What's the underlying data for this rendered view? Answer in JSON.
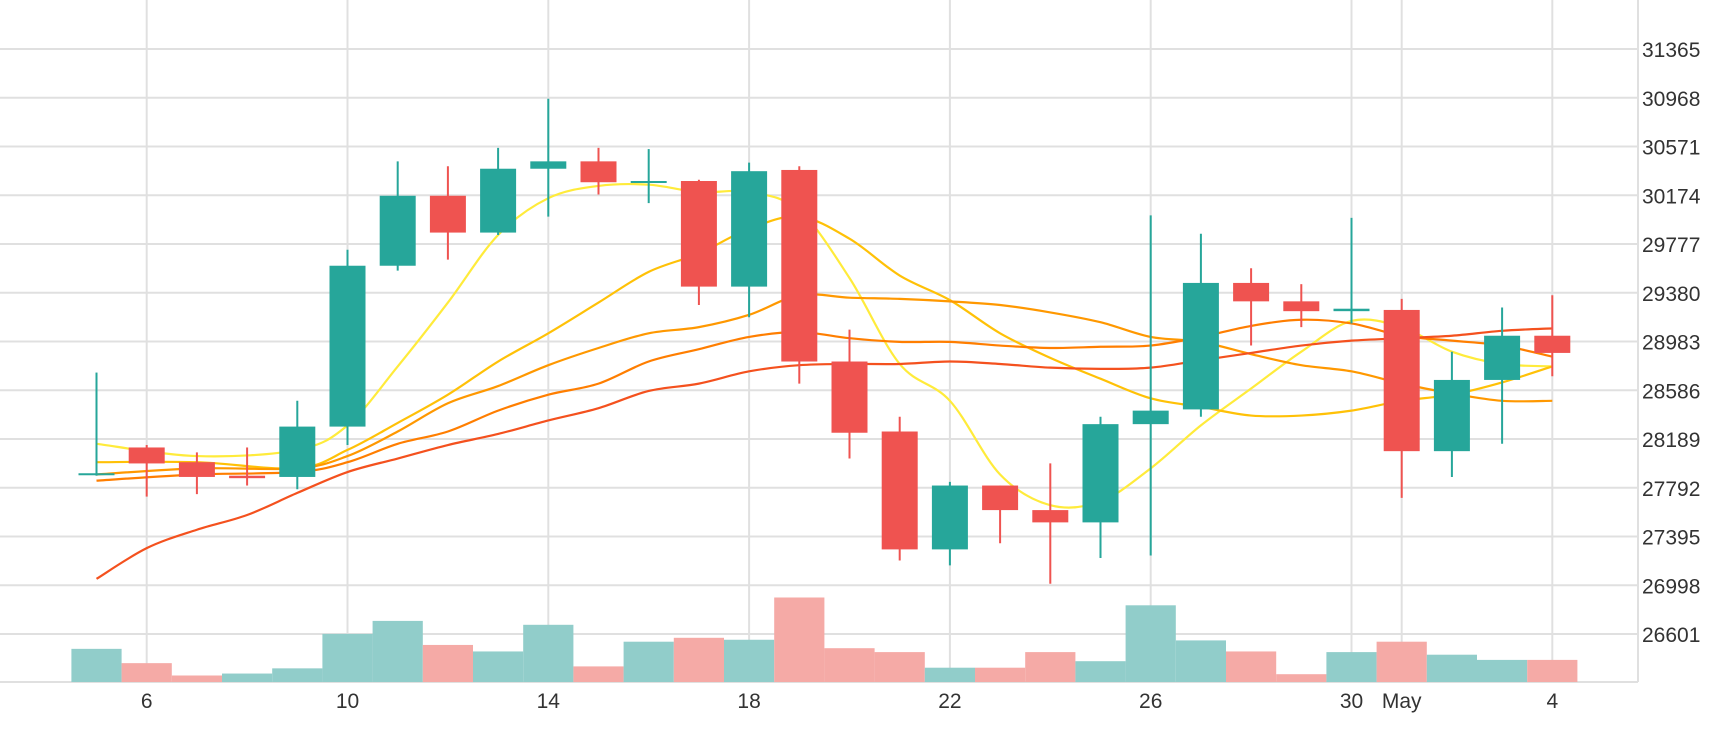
{
  "chart_data": {
    "type": "candlestick",
    "title": "",
    "xlabel": "",
    "ylabel": "",
    "y_ticks": [
      "31365",
      "30968",
      "30571",
      "30174",
      "29777",
      "29380",
      "28983",
      "28586",
      "28189",
      "27792",
      "27395",
      "26998",
      "26601"
    ],
    "ylim": [
      26200,
      31800
    ],
    "y_axis_position": "right",
    "grid": true,
    "x_ticks": [
      {
        "label": "6",
        "day": 6
      },
      {
        "label": "10",
        "day": 10
      },
      {
        "label": "14",
        "day": 14
      },
      {
        "label": "18",
        "day": 18
      },
      {
        "label": "22",
        "day": 22
      },
      {
        "label": "26",
        "day": 26
      },
      {
        "label": "30",
        "day": 30
      },
      {
        "label": "May",
        "day": 31
      },
      {
        "label": "4",
        "day": 34
      }
    ],
    "colors": {
      "up": "#26a69a",
      "down": "#ef5350",
      "up_volume": "#91cdca",
      "down_volume": "#f5aaa6",
      "grid": "#e0e0e0"
    },
    "candles": [
      {
        "day": 5,
        "o": 27900,
        "h": 28730,
        "l": 27890,
        "c": 27910
      },
      {
        "day": 6,
        "o": 28120,
        "h": 28140,
        "l": 27720,
        "c": 27990
      },
      {
        "day": 7,
        "o": 28000,
        "h": 28080,
        "l": 27740,
        "c": 27880
      },
      {
        "day": 8,
        "o": 27890,
        "h": 28120,
        "l": 27810,
        "c": 27870
      },
      {
        "day": 9,
        "o": 27880,
        "h": 28500,
        "l": 27780,
        "c": 28290
      },
      {
        "day": 10,
        "o": 28290,
        "h": 29730,
        "l": 28140,
        "c": 29600
      },
      {
        "day": 11,
        "o": 29600,
        "h": 30450,
        "l": 29560,
        "c": 30170
      },
      {
        "day": 12,
        "o": 30170,
        "h": 30410,
        "l": 29650,
        "c": 29870
      },
      {
        "day": 13,
        "o": 29870,
        "h": 30560,
        "l": 29850,
        "c": 30390
      },
      {
        "day": 14,
        "o": 30390,
        "h": 30960,
        "l": 30000,
        "c": 30450
      },
      {
        "day": 15,
        "o": 30450,
        "h": 30560,
        "l": 30180,
        "c": 30280
      },
      {
        "day": 16,
        "o": 30280,
        "h": 30550,
        "l": 30110,
        "c": 30290
      },
      {
        "day": 17,
        "o": 30290,
        "h": 30300,
        "l": 29280,
        "c": 29430
      },
      {
        "day": 18,
        "o": 29430,
        "h": 30440,
        "l": 29180,
        "c": 30370
      },
      {
        "day": 19,
        "o": 30380,
        "h": 30410,
        "l": 28640,
        "c": 28820
      },
      {
        "day": 20,
        "o": 28820,
        "h": 29080,
        "l": 28030,
        "c": 28240
      },
      {
        "day": 21,
        "o": 28250,
        "h": 28370,
        "l": 27200,
        "c": 27290
      },
      {
        "day": 22,
        "o": 27290,
        "h": 27840,
        "l": 27160,
        "c": 27810
      },
      {
        "day": 23,
        "o": 27810,
        "h": 27810,
        "l": 27340,
        "c": 27610
      },
      {
        "day": 24,
        "o": 27610,
        "h": 27990,
        "l": 27010,
        "c": 27510
      },
      {
        "day": 25,
        "o": 27510,
        "h": 28370,
        "l": 27220,
        "c": 28310
      },
      {
        "day": 26,
        "o": 28310,
        "h": 30010,
        "l": 27240,
        "c": 28420
      },
      {
        "day": 27,
        "o": 28430,
        "h": 29860,
        "l": 28370,
        "c": 29460
      },
      {
        "day": 28,
        "o": 29460,
        "h": 29580,
        "l": 28950,
        "c": 29310
      },
      {
        "day": 29,
        "o": 29310,
        "h": 29450,
        "l": 29100,
        "c": 29230
      },
      {
        "day": 30,
        "o": 29230,
        "h": 29990,
        "l": 29130,
        "c": 29250
      },
      {
        "day": 31,
        "o": 29240,
        "h": 29330,
        "l": 27710,
        "c": 28090
      },
      {
        "day": 32,
        "o": 28090,
        "h": 28900,
        "l": 27880,
        "c": 28670
      },
      {
        "day": 33,
        "o": 28670,
        "h": 29260,
        "l": 28150,
        "c": 29030
      },
      {
        "day": 34,
        "o": 29030,
        "h": 29360,
        "l": 28700,
        "c": 28890
      }
    ],
    "volume": [
      {
        "day": 5,
        "v": 0.51,
        "dir": "up"
      },
      {
        "day": 6,
        "v": 0.29,
        "dir": "down"
      },
      {
        "day": 7,
        "v": 0.1,
        "dir": "down"
      },
      {
        "day": 8,
        "v": 0.13,
        "dir": "up"
      },
      {
        "day": 9,
        "v": 0.21,
        "dir": "up"
      },
      {
        "day": 10,
        "v": 0.74,
        "dir": "up"
      },
      {
        "day": 11,
        "v": 0.94,
        "dir": "up"
      },
      {
        "day": 12,
        "v": 0.57,
        "dir": "down"
      },
      {
        "day": 13,
        "v": 0.47,
        "dir": "up"
      },
      {
        "day": 14,
        "v": 0.88,
        "dir": "up"
      },
      {
        "day": 15,
        "v": 0.24,
        "dir": "down"
      },
      {
        "day": 16,
        "v": 0.62,
        "dir": "up"
      },
      {
        "day": 17,
        "v": 0.68,
        "dir": "down"
      },
      {
        "day": 18,
        "v": 0.65,
        "dir": "up"
      },
      {
        "day": 19,
        "v": 1.3,
        "dir": "down"
      },
      {
        "day": 20,
        "v": 0.52,
        "dir": "down"
      },
      {
        "day": 21,
        "v": 0.46,
        "dir": "down"
      },
      {
        "day": 22,
        "v": 0.22,
        "dir": "up"
      },
      {
        "day": 23,
        "v": 0.22,
        "dir": "down"
      },
      {
        "day": 24,
        "v": 0.46,
        "dir": "down"
      },
      {
        "day": 25,
        "v": 0.32,
        "dir": "up"
      },
      {
        "day": 26,
        "v": 1.18,
        "dir": "up"
      },
      {
        "day": 27,
        "v": 0.64,
        "dir": "up"
      },
      {
        "day": 28,
        "v": 0.47,
        "dir": "down"
      },
      {
        "day": 29,
        "v": 0.12,
        "dir": "down"
      },
      {
        "day": 30,
        "v": 0.46,
        "dir": "up"
      },
      {
        "day": 31,
        "v": 0.62,
        "dir": "down"
      },
      {
        "day": 32,
        "v": 0.42,
        "dir": "up"
      },
      {
        "day": 33,
        "v": 0.34,
        "dir": "up"
      },
      {
        "day": 34,
        "v": 0.34,
        "dir": "down"
      }
    ],
    "moving_averages": [
      {
        "color": "#ffeb3b",
        "points": [
          [
            5,
            28150
          ],
          [
            7,
            28050
          ],
          [
            9,
            28100
          ],
          [
            10,
            28300
          ],
          [
            11,
            28780
          ],
          [
            12,
            29300
          ],
          [
            13,
            29850
          ],
          [
            14,
            30150
          ],
          [
            15,
            30250
          ],
          [
            16,
            30260
          ],
          [
            17,
            30200
          ],
          [
            18,
            30200
          ],
          [
            19,
            30050
          ],
          [
            20,
            29500
          ],
          [
            21,
            28800
          ],
          [
            22,
            28500
          ],
          [
            23,
            27900
          ],
          [
            24,
            27650
          ],
          [
            25,
            27680
          ],
          [
            26,
            27950
          ],
          [
            27,
            28300
          ],
          [
            28,
            28600
          ],
          [
            29,
            28900
          ],
          [
            30,
            29150
          ],
          [
            31,
            29100
          ],
          [
            32,
            28900
          ],
          [
            33,
            28800
          ],
          [
            34,
            28780
          ]
        ]
      },
      {
        "color": "#ffc107",
        "points": [
          [
            5,
            28000
          ],
          [
            7,
            28000
          ],
          [
            9,
            27950
          ],
          [
            10,
            28100
          ],
          [
            11,
            28320
          ],
          [
            12,
            28550
          ],
          [
            13,
            28820
          ],
          [
            14,
            29050
          ],
          [
            15,
            29300
          ],
          [
            16,
            29550
          ],
          [
            17,
            29700
          ],
          [
            18,
            29900
          ],
          [
            19,
            30000
          ],
          [
            20,
            29820
          ],
          [
            21,
            29520
          ],
          [
            22,
            29320
          ],
          [
            23,
            29050
          ],
          [
            24,
            28850
          ],
          [
            25,
            28680
          ],
          [
            26,
            28520
          ],
          [
            27,
            28450
          ],
          [
            28,
            28380
          ],
          [
            29,
            28380
          ],
          [
            30,
            28420
          ],
          [
            31,
            28500
          ],
          [
            32,
            28550
          ],
          [
            33,
            28650
          ],
          [
            34,
            28780
          ]
        ]
      },
      {
        "color": "#ff9800",
        "points": [
          [
            5,
            27900
          ],
          [
            7,
            27950
          ],
          [
            9,
            27950
          ],
          [
            10,
            28050
          ],
          [
            11,
            28250
          ],
          [
            12,
            28480
          ],
          [
            13,
            28620
          ],
          [
            14,
            28790
          ],
          [
            15,
            28930
          ],
          [
            16,
            29050
          ],
          [
            17,
            29100
          ],
          [
            18,
            29200
          ],
          [
            19,
            29360
          ],
          [
            20,
            29340
          ],
          [
            21,
            29330
          ],
          [
            22,
            29310
          ],
          [
            23,
            29280
          ],
          [
            24,
            29220
          ],
          [
            25,
            29140
          ],
          [
            26,
            29020
          ],
          [
            27,
            28980
          ],
          [
            28,
            28880
          ],
          [
            29,
            28790
          ],
          [
            30,
            28740
          ],
          [
            31,
            28640
          ],
          [
            32,
            28560
          ],
          [
            33,
            28500
          ],
          [
            34,
            28500
          ]
        ]
      },
      {
        "color": "#ff7e00",
        "points": [
          [
            5,
            27850
          ],
          [
            7,
            27900
          ],
          [
            9,
            27920
          ],
          [
            10,
            28000
          ],
          [
            11,
            28150
          ],
          [
            12,
            28250
          ],
          [
            13,
            28420
          ],
          [
            14,
            28550
          ],
          [
            15,
            28640
          ],
          [
            16,
            28820
          ],
          [
            17,
            28920
          ],
          [
            18,
            29020
          ],
          [
            19,
            29060
          ],
          [
            20,
            29010
          ],
          [
            21,
            28980
          ],
          [
            22,
            28980
          ],
          [
            23,
            28950
          ],
          [
            24,
            28930
          ],
          [
            25,
            28940
          ],
          [
            26,
            28950
          ],
          [
            27,
            29020
          ],
          [
            28,
            29110
          ],
          [
            29,
            29160
          ],
          [
            30,
            29130
          ],
          [
            31,
            29030
          ],
          [
            32,
            28990
          ],
          [
            33,
            28950
          ],
          [
            34,
            28860
          ]
        ]
      },
      {
        "color": "#f4511e",
        "points": [
          [
            5,
            27050
          ],
          [
            6,
            27300
          ],
          [
            7,
            27450
          ],
          [
            8,
            27570
          ],
          [
            9,
            27750
          ],
          [
            10,
            27920
          ],
          [
            11,
            28030
          ],
          [
            12,
            28140
          ],
          [
            13,
            28230
          ],
          [
            14,
            28340
          ],
          [
            15,
            28440
          ],
          [
            16,
            28580
          ],
          [
            17,
            28640
          ],
          [
            18,
            28740
          ],
          [
            19,
            28790
          ],
          [
            20,
            28800
          ],
          [
            21,
            28800
          ],
          [
            22,
            28820
          ],
          [
            23,
            28800
          ],
          [
            24,
            28770
          ],
          [
            25,
            28760
          ],
          [
            26,
            28770
          ],
          [
            27,
            28830
          ],
          [
            28,
            28890
          ],
          [
            29,
            28950
          ],
          [
            30,
            28990
          ],
          [
            31,
            29010
          ],
          [
            32,
            29030
          ],
          [
            33,
            29070
          ],
          [
            34,
            29090
          ]
        ]
      }
    ]
  }
}
